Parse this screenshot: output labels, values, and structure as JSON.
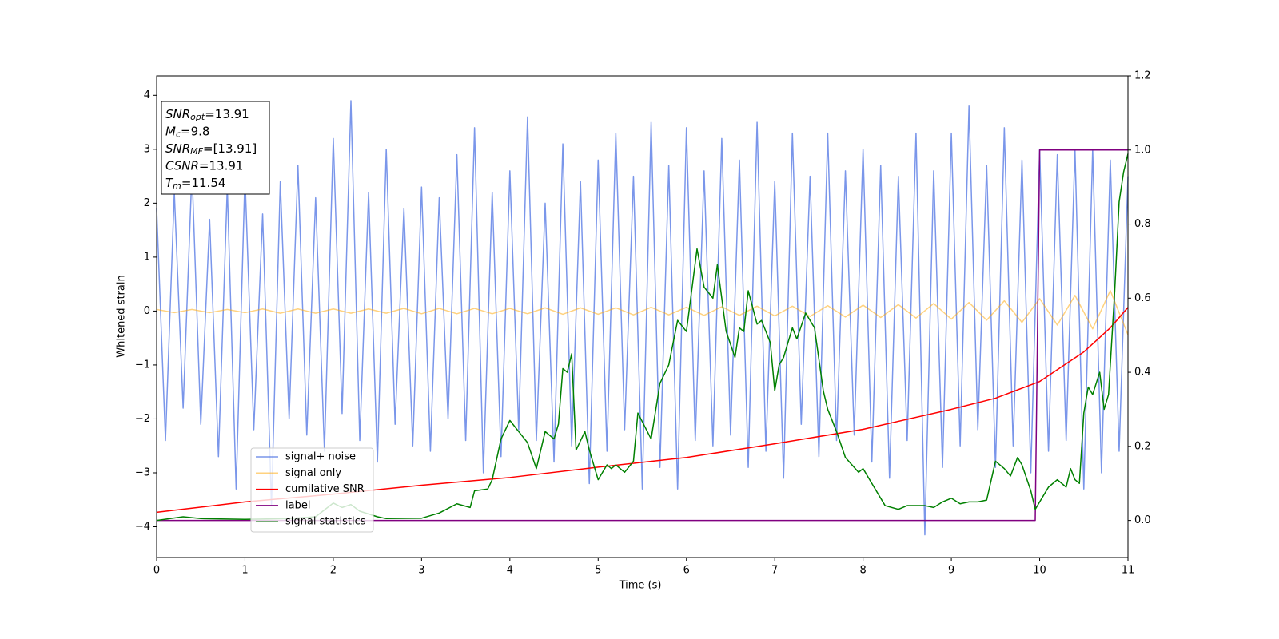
{
  "chart_data": {
    "type": "line",
    "xlabel": "Time (s)",
    "ylabel": "Whitened strain",
    "xlim": [
      0,
      11
    ],
    "xticks": [
      0,
      1,
      2,
      3,
      4,
      5,
      6,
      7,
      8,
      9,
      10,
      11
    ],
    "ylim": [
      -4.57,
      4.36
    ],
    "yticks": [
      {
        "value": -4,
        "label": "−4"
      },
      {
        "value": -3,
        "label": "−3"
      },
      {
        "value": -2,
        "label": "−2"
      },
      {
        "value": -1,
        "label": "−1"
      },
      0,
      1,
      2,
      3,
      4
    ],
    "y2lim": [
      -0.1,
      1.2
    ],
    "y2ticks": [
      {
        "value": 0,
        "label": "0.0"
      },
      {
        "value": 0.2,
        "label": "0.2"
      },
      {
        "value": 0.4,
        "label": "0.4"
      },
      {
        "value": 0.6,
        "label": "0.6"
      },
      {
        "value": 0.8,
        "label": "0.8"
      },
      {
        "value": 1,
        "label": "1.0"
      },
      {
        "value": 1.2,
        "label": "1.2"
      }
    ],
    "legend": "lower left",
    "annotation_lines": [
      {
        "symbol": "SNR",
        "subscript": "opt",
        "text": "=13.91"
      },
      {
        "symbol": "M",
        "subscript": "c",
        "text": "=9.8"
      },
      {
        "symbol": "SNR",
        "subscript": "MF",
        "text": "=[13.91]"
      },
      {
        "symbol": "CSNR",
        "text": "=13.91"
      },
      {
        "symbol": "T",
        "subscript": "m",
        "text": "=11.54"
      }
    ],
    "series": [
      {
        "name": "signal+ noise",
        "color": "#4169e1",
        "opacity": 0.7,
        "x": [
          0,
          0.1,
          0.2,
          0.3,
          0.4,
          0.5,
          0.6,
          0.7,
          0.8,
          0.9,
          1,
          1.1,
          1.2,
          1.3,
          1.4,
          1.5,
          1.6,
          1.7,
          1.8,
          1.9,
          2,
          2.1,
          2.2,
          2.3,
          2.4,
          2.5,
          2.6,
          2.7,
          2.8,
          2.9,
          3,
          3.1,
          3.2,
          3.3,
          3.4,
          3.5,
          3.6,
          3.7,
          3.8,
          3.9,
          4,
          4.1,
          4.2,
          4.3,
          4.4,
          4.5,
          4.6,
          4.7,
          4.8,
          4.9,
          5,
          5.1,
          5.2,
          5.3,
          5.4,
          5.5,
          5.6,
          5.7,
          5.8,
          5.9,
          6,
          6.1,
          6.2,
          6.3,
          6.4,
          6.5,
          6.6,
          6.7,
          6.8,
          6.9,
          7,
          7.1,
          7.2,
          7.3,
          7.4,
          7.5,
          7.6,
          7.7,
          7.8,
          7.9,
          8,
          8.1,
          8.2,
          8.3,
          8.4,
          8.5,
          8.6,
          8.7,
          8.8,
          8.9,
          9,
          9.1,
          9.2,
          9.3,
          9.4,
          9.5,
          9.6,
          9.7,
          9.8,
          9.9,
          10,
          10.1,
          10.2,
          10.3,
          10.4,
          10.5,
          10.6,
          10.7,
          10.8,
          10.9,
          11
        ],
        "values": [
          1.9,
          -2.4,
          2.2,
          -1.8,
          2.6,
          -2.1,
          1.7,
          -2.7,
          2.3,
          -3.3,
          2.5,
          -2.2,
          1.8,
          -3.6,
          2.4,
          -2.0,
          2.7,
          -2.3,
          2.1,
          -2.6,
          3.2,
          -1.9,
          3.9,
          -2.4,
          2.2,
          -2.8,
          3.0,
          -2.1,
          1.9,
          -2.5,
          2.3,
          -2.6,
          2.1,
          -2.0,
          2.9,
          -2.4,
          3.4,
          -3.0,
          2.2,
          -2.7,
          2.6,
          -2.2,
          3.6,
          -2.4,
          2.0,
          -2.8,
          3.1,
          -2.5,
          2.4,
          -3.2,
          2.8,
          -2.6,
          3.3,
          -2.2,
          2.5,
          -3.3,
          3.5,
          -2.9,
          2.7,
          -3.3,
          3.4,
          -2.4,
          2.6,
          -2.5,
          3.2,
          -2.3,
          2.8,
          -2.9,
          3.5,
          -2.6,
          2.4,
          -3.1,
          3.3,
          -2.1,
          2.5,
          -2.7,
          3.3,
          -2.4,
          2.6,
          -2.3,
          3.0,
          -2.8,
          2.7,
          -3.1,
          2.5,
          -2.4,
          3.3,
          -4.15,
          2.6,
          -2.9,
          3.3,
          -2.5,
          3.8,
          -2.2,
          2.7,
          -2.9,
          3.4,
          -2.5,
          2.8,
          -3.0,
          3.0,
          -2.6,
          2.9,
          -2.4,
          3.0,
          -3.3,
          3.0,
          -3.0,
          2.8,
          -2.6,
          2.5
        ]
      },
      {
        "name": "signal only",
        "color": "#ffa500",
        "opacity": 0.5,
        "x": [
          0,
          0.2,
          0.4,
          0.6,
          0.8,
          1,
          1.2,
          1.4,
          1.6,
          1.8,
          2,
          2.2,
          2.4,
          2.6,
          2.8,
          3,
          3.2,
          3.4,
          3.6,
          3.8,
          4,
          4.2,
          4.4,
          4.6,
          4.8,
          5,
          5.2,
          5.4,
          5.6,
          5.8,
          6,
          6.2,
          6.4,
          6.6,
          6.8,
          7,
          7.2,
          7.4,
          7.6,
          7.8,
          8,
          8.2,
          8.4,
          8.6,
          8.8,
          9,
          9.2,
          9.4,
          9.6,
          9.8,
          10,
          10.2,
          10.4,
          10.6,
          10.8,
          11
        ],
        "values": [
          0.03,
          -0.03,
          0.03,
          -0.03,
          0.03,
          -0.03,
          0.04,
          -0.04,
          0.04,
          -0.04,
          0.04,
          -0.04,
          0.04,
          -0.04,
          0.05,
          -0.05,
          0.05,
          -0.05,
          0.05,
          -0.05,
          0.05,
          -0.05,
          0.06,
          -0.06,
          0.06,
          -0.06,
          0.06,
          -0.07,
          0.07,
          -0.07,
          0.07,
          -0.08,
          0.08,
          -0.08,
          0.09,
          -0.09,
          0.09,
          -0.1,
          0.1,
          -0.11,
          0.11,
          -0.12,
          0.12,
          -0.13,
          0.14,
          -0.15,
          0.16,
          -0.17,
          0.19,
          -0.21,
          0.23,
          -0.26,
          0.29,
          -0.33,
          0.38,
          -0.44
        ]
      },
      {
        "name": "cumilative SNR",
        "color": "#ff0000",
        "axis": "y2",
        "x": [
          0,
          1,
          2,
          3,
          4,
          5,
          6,
          7,
          8,
          9,
          9.5,
          10,
          10.5,
          10.8,
          11
        ],
        "values": [
          0.022,
          0.05,
          0.071,
          0.095,
          0.116,
          0.144,
          0.17,
          0.207,
          0.246,
          0.3,
          0.33,
          0.375,
          0.455,
          0.52,
          0.575
        ]
      },
      {
        "name": "label",
        "color": "#800080",
        "axis": "y2",
        "x": [
          0,
          9.95,
          10,
          11
        ],
        "values": [
          0,
          0,
          1,
          1
        ]
      },
      {
        "name": "signal statistics",
        "color": "#008000",
        "axis": "y2",
        "x": [
          0,
          0.3,
          0.5,
          1,
          1.5,
          1.8,
          2.0,
          2.1,
          2.2,
          2.3,
          2.5,
          2.6,
          3,
          3.2,
          3.4,
          3.55,
          3.6,
          3.75,
          3.8,
          3.9,
          4.0,
          4.1,
          4.2,
          4.3,
          4.4,
          4.5,
          4.55,
          4.6,
          4.65,
          4.7,
          4.75,
          4.85,
          4.9,
          5.0,
          5.1,
          5.15,
          5.2,
          5.3,
          5.4,
          5.45,
          5.6,
          5.7,
          5.8,
          5.9,
          6.0,
          6.12,
          6.2,
          6.3,
          6.35,
          6.45,
          6.55,
          6.6,
          6.65,
          6.7,
          6.8,
          6.85,
          6.95,
          7.0,
          7.05,
          7.1,
          7.2,
          7.25,
          7.35,
          7.45,
          7.55,
          7.6,
          7.7,
          7.8,
          7.95,
          8.0,
          8.1,
          8.25,
          8.4,
          8.5,
          8.7,
          8.8,
          8.9,
          9.0,
          9.1,
          9.2,
          9.3,
          9.4,
          9.5,
          9.6,
          9.67,
          9.75,
          9.8,
          9.9,
          9.95,
          10.0,
          10.1,
          10.2,
          10.3,
          10.35,
          10.4,
          10.45,
          10.5,
          10.55,
          10.6,
          10.68,
          10.73,
          10.78,
          10.85,
          10.9,
          10.95,
          11.0
        ],
        "values": [
          0,
          0.01,
          0.005,
          0.003,
          0.005,
          0.01,
          0.047,
          0.035,
          0.043,
          0.025,
          0.01,
          0.005,
          0.006,
          0.02,
          0.045,
          0.035,
          0.08,
          0.085,
          0.11,
          0.22,
          0.27,
          0.24,
          0.21,
          0.14,
          0.24,
          0.22,
          0.26,
          0.41,
          0.4,
          0.45,
          0.19,
          0.24,
          0.19,
          0.11,
          0.15,
          0.14,
          0.15,
          0.13,
          0.16,
          0.29,
          0.22,
          0.37,
          0.42,
          0.54,
          0.51,
          0.733,
          0.63,
          0.6,
          0.69,
          0.51,
          0.44,
          0.52,
          0.51,
          0.62,
          0.53,
          0.54,
          0.48,
          0.35,
          0.42,
          0.44,
          0.52,
          0.49,
          0.56,
          0.52,
          0.35,
          0.3,
          0.24,
          0.17,
          0.13,
          0.14,
          0.1,
          0.04,
          0.03,
          0.04,
          0.04,
          0.035,
          0.05,
          0.06,
          0.045,
          0.05,
          0.05,
          0.055,
          0.16,
          0.14,
          0.12,
          0.17,
          0.15,
          0.08,
          0.03,
          0.05,
          0.09,
          0.11,
          0.09,
          0.14,
          0.11,
          0.1,
          0.29,
          0.36,
          0.34,
          0.4,
          0.3,
          0.34,
          0.62,
          0.86,
          0.94,
          0.99
        ]
      }
    ]
  }
}
